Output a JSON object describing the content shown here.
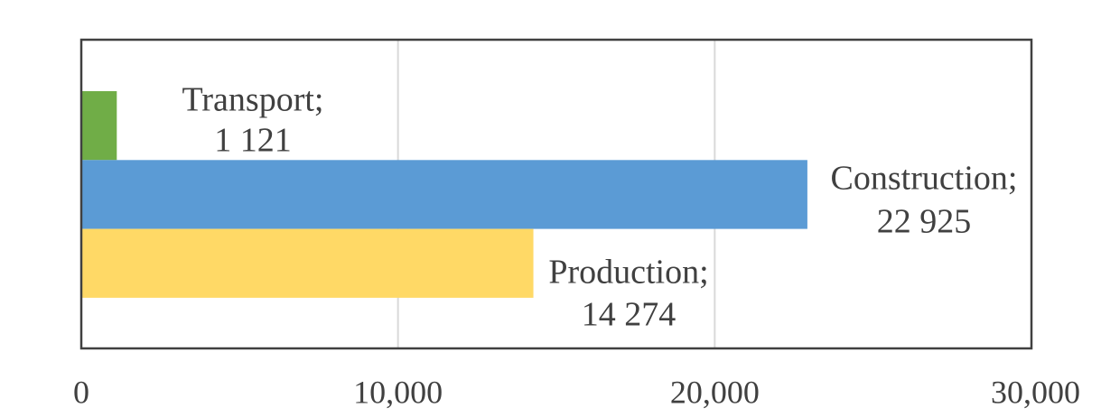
{
  "chart_data": {
    "type": "bar",
    "orientation": "horizontal",
    "title": "",
    "xlabel": "",
    "ylabel": "",
    "xlim": [
      0,
      30000
    ],
    "x_ticks": [
      0,
      10000,
      20000,
      30000
    ],
    "x_tick_labels": [
      "0",
      "10,000",
      "20,000",
      "30,000"
    ],
    "grid": true,
    "legend": "none",
    "series": [
      {
        "name": "Transport",
        "value": 1121,
        "label_name": "Transport;",
        "label_value": "1 121",
        "color": "#70AD47"
      },
      {
        "name": "Construction",
        "value": 22925,
        "label_name": "Construction;",
        "label_value": "22 925",
        "color": "#5B9BD5"
      },
      {
        "name": "Production",
        "value": 14274,
        "label_name": "Production;",
        "label_value": "14 274",
        "color": "#FFD966"
      }
    ]
  }
}
